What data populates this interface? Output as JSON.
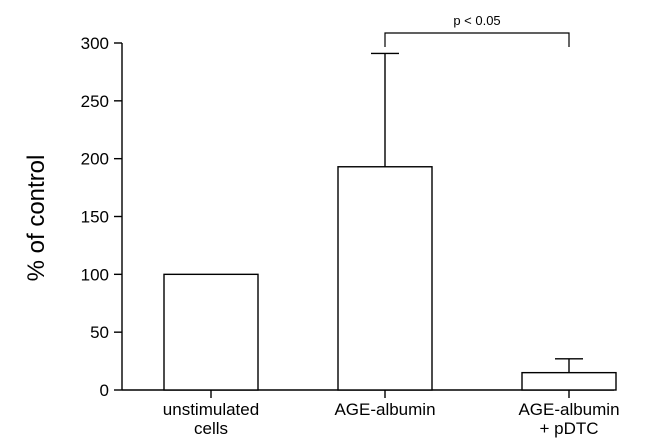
{
  "chart_data": {
    "type": "bar",
    "ylabel": "% of control",
    "xlabel": "",
    "title": "",
    "ylim": [
      0,
      300
    ],
    "yticks": [
      0,
      50,
      100,
      150,
      200,
      250,
      300
    ],
    "categories": [
      [
        "unstimulated",
        "cells"
      ],
      [
        "AGE-albumin"
      ],
      [
        "AGE-albumin",
        "+ pDTC"
      ]
    ],
    "values": [
      100,
      193,
      15
    ],
    "error_upper": [
      null,
      291,
      27
    ],
    "annotation": {
      "text": "p < 0.05",
      "between": [
        1,
        2
      ]
    },
    "grid": false,
    "colors": {
      "bar_fill": "#ffffff",
      "stroke": "#000000"
    }
  }
}
